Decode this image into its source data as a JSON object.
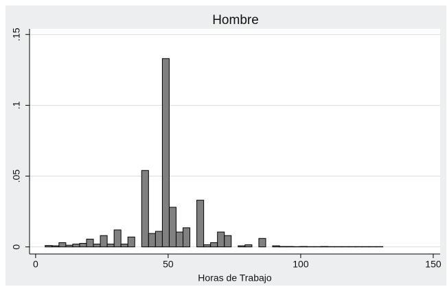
{
  "chart_data": {
    "type": "histogram",
    "title": "Hombre",
    "xlabel": "Horas de Trabajo",
    "bins": [
      1,
      3.6,
      6.2,
      8.8,
      11.4,
      14,
      16.6,
      19.2,
      21.8,
      24.4,
      27,
      29.6,
      32.2,
      34.8,
      37.4,
      40,
      42.6,
      45.2,
      47.8,
      50.4,
      53,
      55.6,
      58.2,
      60.8,
      63.4,
      66,
      68.6,
      71.2,
      73.8,
      76.4,
      79,
      81.6,
      84.2,
      86.8,
      89.4,
      92,
      94.6,
      97.2,
      99.8,
      102.4,
      105,
      107.6,
      110.2,
      112.8,
      115.4,
      118,
      120.6,
      123.2,
      125.8,
      128.4,
      131
    ],
    "values": [
      0,
      0.001,
      0.0008,
      0.003,
      0.0012,
      0.002,
      0.0025,
      0.0055,
      0.002,
      0.008,
      0.002,
      0.012,
      0.002,
      0.007,
      0,
      0.054,
      0.0095,
      0.011,
      0.133,
      0.028,
      0.0105,
      0.0135,
      0,
      0.033,
      0.0015,
      0.003,
      0.0105,
      0.008,
      0,
      0.0008,
      0.0015,
      0,
      0.006,
      0,
      0.0008,
      0.0003,
      0.0003,
      0.0002,
      0.0003,
      0.0002,
      0.0002,
      0.0003,
      0.0002,
      0.0002,
      0.0002,
      0.0002,
      0.0002,
      0.0002,
      0.0002,
      0.0002
    ],
    "color": "#808080",
    "xlim": [
      -2.3,
      152.6
    ],
    "xticks": [
      0,
      50,
      100,
      150
    ],
    "ylim": [
      -0.005,
      0.154
    ],
    "yticks": [
      0,
      {
        "value": 0.05,
        "label": ".05"
      },
      {
        "value": 0.1,
        "label": ".1"
      },
      {
        "value": 0.15,
        "label": ".15"
      }
    ],
    "grid": true
  }
}
